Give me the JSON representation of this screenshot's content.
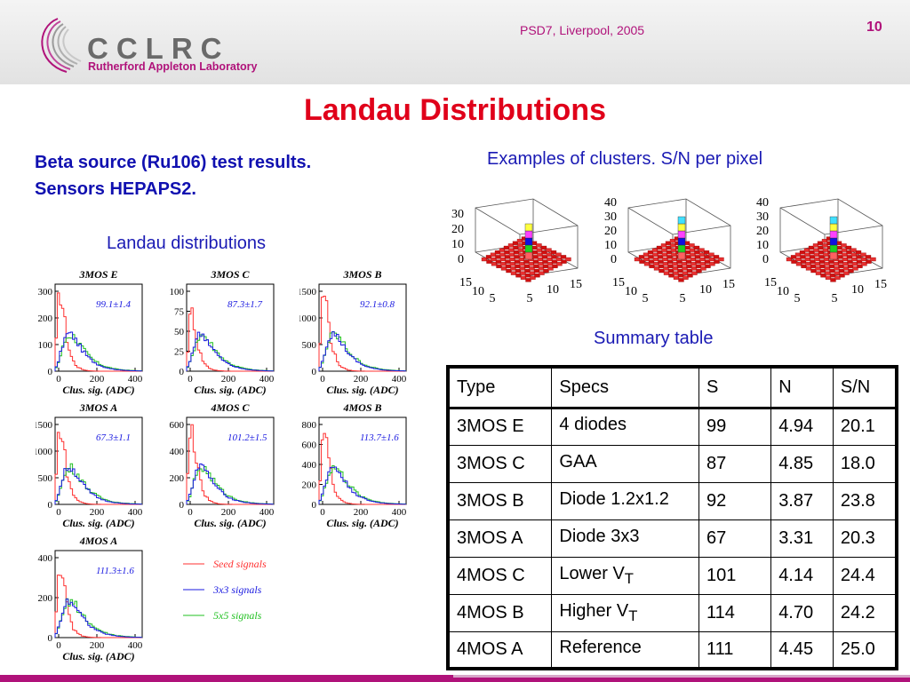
{
  "header": {
    "logo_name": "CCLRC",
    "logo_sub": "Rutherford Appleton Laboratory",
    "conference": "PSD7, Liverpool, 2005",
    "page_number": "10"
  },
  "title": "Landau Distributions",
  "intro": "Beta source (Ru106) test results. Sensors HEPAPS2.",
  "landau_label": "Landau distributions",
  "clusters_label": "Examples of clusters. S/N per pixel",
  "summary_label": "Summary table",
  "colors": {
    "seed": "#ff3030",
    "three": "#1a1ae0",
    "five": "#20c020",
    "accent": "#b0127a",
    "title": "#e0001a"
  },
  "legend": {
    "seed": "Seed signals",
    "three": "3x3 signals",
    "five": "5x5 signals"
  },
  "plots": [
    {
      "title": "3MOS E",
      "value": "99.1±1.4",
      "xlabel": "Clus. sig. (ADC)",
      "yticks": [
        "0",
        "100",
        "200",
        "300"
      ],
      "xticks": [
        "0",
        "200",
        "400"
      ]
    },
    {
      "title": "3MOS C",
      "value": "87.3±1.7",
      "xlabel": "Clus. sig. (ADC)",
      "yticks": [
        "0",
        "25",
        "50",
        "75",
        "100"
      ],
      "xticks": [
        "0",
        "200",
        "400"
      ]
    },
    {
      "title": "3MOS B",
      "value": "92.1±0.8",
      "xlabel": "Clus. sig. (ADC)",
      "yticks": [
        "0",
        "500",
        "1000",
        "1500"
      ],
      "xticks": [
        "0",
        "200",
        "400"
      ]
    },
    {
      "title": "3MOS A",
      "value": "67.3±1.1",
      "xlabel": "Clus. sig. (ADC)",
      "yticks": [
        "0",
        "500",
        "1000",
        "1500"
      ],
      "xticks": [
        "0",
        "200",
        "400"
      ]
    },
    {
      "title": "4MOS C",
      "value": "101.2±1.5",
      "xlabel": "Clus. sig. (ADC)",
      "yticks": [
        "0",
        "200",
        "400",
        "600"
      ],
      "xticks": [
        "0",
        "200",
        "400"
      ]
    },
    {
      "title": "4MOS B",
      "value": "113.7±1.6",
      "xlabel": "Clus. sig. (ADC)",
      "yticks": [
        "0",
        "200",
        "400",
        "600",
        "800"
      ],
      "xticks": [
        "0",
        "200",
        "400"
      ]
    },
    {
      "title": "4MOS A",
      "value": "111.3±1.6",
      "xlabel": "Clus. sig. (ADC)",
      "yticks": [
        "0",
        "200",
        "400"
      ],
      "xticks": [
        "0",
        "200",
        "400"
      ]
    }
  ],
  "legos": [
    {
      "zticks": [
        "0",
        "10",
        "20",
        "30"
      ],
      "xticks": [
        "5",
        "10",
        "15"
      ],
      "yticks": [
        "5",
        "10",
        "15"
      ]
    },
    {
      "zticks": [
        "0",
        "10",
        "20",
        "30",
        "40"
      ],
      "xticks": [
        "5",
        "10",
        "15"
      ],
      "yticks": [
        "5",
        "10",
        "15"
      ]
    },
    {
      "zticks": [
        "0",
        "10",
        "20",
        "30",
        "40"
      ],
      "xticks": [
        "5",
        "10",
        "15"
      ],
      "yticks": [
        "5",
        "10",
        "15"
      ]
    }
  ],
  "table": {
    "headers": [
      "Type",
      "Specs",
      "S",
      "N",
      "S/N"
    ],
    "rows": [
      {
        "type": "3MOS E",
        "specs": "4 diodes",
        "specs_sub": "",
        "s": "99",
        "n": "4.94",
        "sn": "20.1"
      },
      {
        "type": "3MOS C",
        "specs": "GAA",
        "specs_sub": "",
        "s": "87",
        "n": "4.85",
        "sn": "18.0"
      },
      {
        "type": "3MOS B",
        "specs": "Diode 1.2x1.2",
        "specs_sub": "",
        "s": "92",
        "n": "3.87",
        "sn": "23.8"
      },
      {
        "type": "3MOS A",
        "specs": "Diode 3x3",
        "specs_sub": "",
        "s": "67",
        "n": "3.31",
        "sn": "20.3"
      },
      {
        "type": "4MOS C",
        "specs": "Lower V",
        "specs_sub": "T",
        "s": "101",
        "n": "4.14",
        "sn": "24.4"
      },
      {
        "type": "4MOS B",
        "specs": "Higher V",
        "specs_sub": "T",
        "s": "114",
        "n": "4.70",
        "sn": "24.2"
      },
      {
        "type": "4MOS A",
        "specs": "Reference",
        "specs_sub": "",
        "s": "111",
        "n": "4.45",
        "sn": "25.0"
      }
    ]
  }
}
